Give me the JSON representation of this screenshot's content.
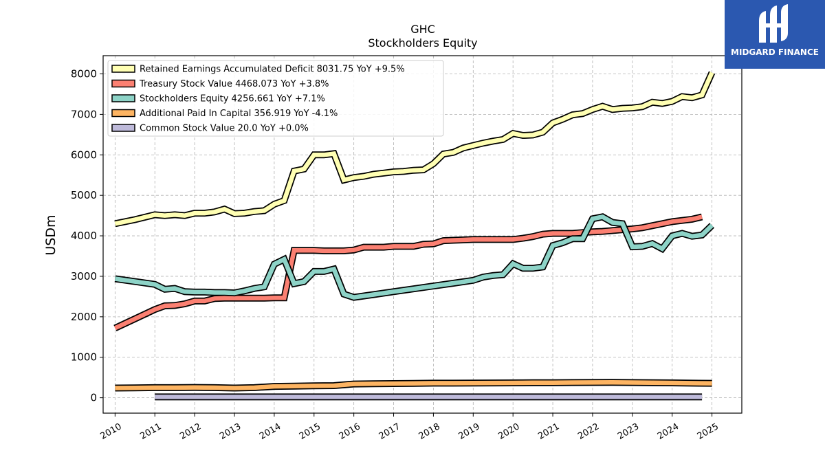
{
  "brand": {
    "name": "MIDGARD FINANCE",
    "logo_icon": "midgard-logo-icon",
    "color": "#2b58b0"
  },
  "chart_data": {
    "type": "line",
    "title": "GHC",
    "subtitle": "Stockholders  Equity",
    "ylabel": "USDm",
    "xlabel": "",
    "xlim": [
      2009.7,
      2025.75
    ],
    "ylim": [
      -380,
      8450
    ],
    "yticks": [
      0,
      1000,
      2000,
      3000,
      4000,
      5000,
      6000,
      7000,
      8000
    ],
    "xticks": [
      "2010",
      "2011",
      "2012",
      "2013",
      "2014",
      "2015",
      "2016",
      "2017",
      "2018",
      "2019",
      "2020",
      "2021",
      "2022",
      "2023",
      "2024",
      "2025"
    ],
    "grid": true,
    "legend_position": "top-left",
    "series": [
      {
        "name": "Retained Earnings Accumulated Deficit",
        "legend": "Retained Earnings Accumulated Deficit  8031.75 YoY +9.5%",
        "color": "#ffffb3",
        "points": [
          [
            2010.0,
            4300
          ],
          [
            2010.5,
            4400
          ],
          [
            2011.0,
            4520
          ],
          [
            2011.25,
            4500
          ],
          [
            2011.5,
            4520
          ],
          [
            2011.75,
            4500
          ],
          [
            2012.0,
            4560
          ],
          [
            2012.25,
            4560
          ],
          [
            2012.5,
            4590
          ],
          [
            2012.75,
            4660
          ],
          [
            2013.0,
            4550
          ],
          [
            2013.25,
            4560
          ],
          [
            2013.5,
            4600
          ],
          [
            2013.75,
            4620
          ],
          [
            2014.0,
            4780
          ],
          [
            2014.25,
            4870
          ],
          [
            2014.5,
            5600
          ],
          [
            2014.75,
            5650
          ],
          [
            2015.0,
            6000
          ],
          [
            2015.25,
            6000
          ],
          [
            2015.5,
            6030
          ],
          [
            2015.75,
            5380
          ],
          [
            2016.0,
            5440
          ],
          [
            2016.25,
            5470
          ],
          [
            2016.5,
            5520
          ],
          [
            2016.75,
            5550
          ],
          [
            2017.0,
            5580
          ],
          [
            2017.25,
            5590
          ],
          [
            2017.5,
            5620
          ],
          [
            2017.75,
            5630
          ],
          [
            2018.0,
            5780
          ],
          [
            2018.25,
            6020
          ],
          [
            2018.5,
            6060
          ],
          [
            2018.75,
            6170
          ],
          [
            2019.0,
            6230
          ],
          [
            2019.25,
            6290
          ],
          [
            2019.5,
            6340
          ],
          [
            2019.75,
            6380
          ],
          [
            2020.0,
            6530
          ],
          [
            2020.25,
            6480
          ],
          [
            2020.5,
            6490
          ],
          [
            2020.75,
            6560
          ],
          [
            2021.0,
            6790
          ],
          [
            2021.25,
            6880
          ],
          [
            2021.5,
            6990
          ],
          [
            2021.75,
            7020
          ],
          [
            2022.0,
            7120
          ],
          [
            2022.25,
            7200
          ],
          [
            2022.5,
            7120
          ],
          [
            2022.75,
            7150
          ],
          [
            2023.0,
            7160
          ],
          [
            2023.25,
            7190
          ],
          [
            2023.5,
            7300
          ],
          [
            2023.75,
            7270
          ],
          [
            2024.0,
            7320
          ],
          [
            2024.25,
            7440
          ],
          [
            2024.5,
            7410
          ],
          [
            2024.75,
            7480
          ],
          [
            2025.0,
            8031.75
          ]
        ]
      },
      {
        "name": "Treasury Stock Value",
        "legend": "Treasury Stock Value  4468.073 YoY +3.8%",
        "color": "#fb8072",
        "points": [
          [
            2010.0,
            1720
          ],
          [
            2010.5,
            1950
          ],
          [
            2011.0,
            2180
          ],
          [
            2011.25,
            2270
          ],
          [
            2011.5,
            2280
          ],
          [
            2011.75,
            2320
          ],
          [
            2012.0,
            2390
          ],
          [
            2012.25,
            2390
          ],
          [
            2012.5,
            2450
          ],
          [
            2012.75,
            2460
          ],
          [
            2013.0,
            2460
          ],
          [
            2013.25,
            2460
          ],
          [
            2013.5,
            2460
          ],
          [
            2013.75,
            2460
          ],
          [
            2014.0,
            2470
          ],
          [
            2014.25,
            2470
          ],
          [
            2014.5,
            3640
          ],
          [
            2014.75,
            3640
          ],
          [
            2015.0,
            3640
          ],
          [
            2015.25,
            3630
          ],
          [
            2015.5,
            3630
          ],
          [
            2015.75,
            3630
          ],
          [
            2016.0,
            3650
          ],
          [
            2016.25,
            3720
          ],
          [
            2016.5,
            3720
          ],
          [
            2016.75,
            3720
          ],
          [
            2017.0,
            3740
          ],
          [
            2017.25,
            3740
          ],
          [
            2017.5,
            3740
          ],
          [
            2017.75,
            3790
          ],
          [
            2018.0,
            3800
          ],
          [
            2018.25,
            3880
          ],
          [
            2018.5,
            3890
          ],
          [
            2018.75,
            3900
          ],
          [
            2019.0,
            3910
          ],
          [
            2019.25,
            3910
          ],
          [
            2019.5,
            3910
          ],
          [
            2019.75,
            3910
          ],
          [
            2020.0,
            3910
          ],
          [
            2020.25,
            3940
          ],
          [
            2020.5,
            3980
          ],
          [
            2020.75,
            4040
          ],
          [
            2021.0,
            4060
          ],
          [
            2021.25,
            4060
          ],
          [
            2021.5,
            4060
          ],
          [
            2021.75,
            4080
          ],
          [
            2022.0,
            4100
          ],
          [
            2022.25,
            4110
          ],
          [
            2022.5,
            4130
          ],
          [
            2022.75,
            4150
          ],
          [
            2023.0,
            4170
          ],
          [
            2023.25,
            4200
          ],
          [
            2023.5,
            4250
          ],
          [
            2023.75,
            4300
          ],
          [
            2024.0,
            4350
          ],
          [
            2024.25,
            4380
          ],
          [
            2024.5,
            4410
          ],
          [
            2024.75,
            4468.073
          ]
        ]
      },
      {
        "name": "Stockholders Equity",
        "legend": "Stockholders Equity  4256.661 YoY +7.1%",
        "color": "#8dd3c7",
        "points": [
          [
            2010.0,
            2940
          ],
          [
            2010.5,
            2870
          ],
          [
            2011.0,
            2800
          ],
          [
            2011.25,
            2680
          ],
          [
            2011.5,
            2700
          ],
          [
            2011.75,
            2620
          ],
          [
            2012.0,
            2610
          ],
          [
            2012.25,
            2610
          ],
          [
            2012.5,
            2600
          ],
          [
            2012.75,
            2600
          ],
          [
            2013.0,
            2590
          ],
          [
            2013.25,
            2640
          ],
          [
            2013.5,
            2700
          ],
          [
            2013.75,
            2740
          ],
          [
            2014.0,
            3300
          ],
          [
            2014.25,
            3420
          ],
          [
            2014.5,
            2820
          ],
          [
            2014.75,
            2870
          ],
          [
            2015.0,
            3120
          ],
          [
            2015.25,
            3120
          ],
          [
            2015.5,
            3180
          ],
          [
            2015.75,
            2560
          ],
          [
            2016.0,
            2480
          ],
          [
            2016.5,
            2550
          ],
          [
            2017.0,
            2620
          ],
          [
            2017.5,
            2690
          ],
          [
            2018.0,
            2760
          ],
          [
            2018.5,
            2830
          ],
          [
            2019.0,
            2900
          ],
          [
            2019.25,
            2980
          ],
          [
            2019.5,
            3020
          ],
          [
            2019.75,
            3040
          ],
          [
            2020.0,
            3310
          ],
          [
            2020.25,
            3200
          ],
          [
            2020.5,
            3200
          ],
          [
            2020.75,
            3230
          ],
          [
            2021.0,
            3760
          ],
          [
            2021.25,
            3830
          ],
          [
            2021.5,
            3930
          ],
          [
            2021.75,
            3930
          ],
          [
            2022.0,
            4420
          ],
          [
            2022.25,
            4470
          ],
          [
            2022.5,
            4330
          ],
          [
            2022.75,
            4300
          ],
          [
            2023.0,
            3730
          ],
          [
            2023.25,
            3740
          ],
          [
            2023.5,
            3810
          ],
          [
            2023.75,
            3680
          ],
          [
            2024.0,
            4000
          ],
          [
            2024.25,
            4060
          ],
          [
            2024.5,
            3990
          ],
          [
            2024.75,
            4020
          ],
          [
            2025.0,
            4256.661
          ]
        ]
      },
      {
        "name": "Additional Paid In Capital",
        "legend": "Additional Paid In Capital  356.919 YoY -4.1%",
        "color": "#fdb462",
        "points": [
          [
            2010.0,
            240
          ],
          [
            2010.5,
            245
          ],
          [
            2011.0,
            250
          ],
          [
            2011.5,
            250
          ],
          [
            2012.0,
            255
          ],
          [
            2012.5,
            250
          ],
          [
            2013.0,
            240
          ],
          [
            2013.5,
            250
          ],
          [
            2014.0,
            280
          ],
          [
            2014.5,
            285
          ],
          [
            2015.0,
            295
          ],
          [
            2015.5,
            300
          ],
          [
            2016.0,
            340
          ],
          [
            2016.5,
            345
          ],
          [
            2017.0,
            350
          ],
          [
            2017.5,
            355
          ],
          [
            2018.0,
            360
          ],
          [
            2018.5,
            360
          ],
          [
            2019.0,
            362
          ],
          [
            2019.5,
            365
          ],
          [
            2020.0,
            368
          ],
          [
            2020.5,
            370
          ],
          [
            2021.0,
            372
          ],
          [
            2021.5,
            375
          ],
          [
            2022.0,
            378
          ],
          [
            2022.5,
            380
          ],
          [
            2023.0,
            375
          ],
          [
            2023.5,
            372
          ],
          [
            2024.0,
            368
          ],
          [
            2024.5,
            360
          ],
          [
            2025.0,
            356.919
          ]
        ]
      },
      {
        "name": "Common Stock Value",
        "legend": "Common Stock Value  20.0 YoY +0.0%",
        "color": "#bebada",
        "points": [
          [
            2011.0,
            20
          ],
          [
            2012.0,
            20
          ],
          [
            2013.0,
            20
          ],
          [
            2014.0,
            20
          ],
          [
            2015.0,
            20
          ],
          [
            2016.0,
            20
          ],
          [
            2017.0,
            20
          ],
          [
            2018.0,
            20
          ],
          [
            2019.0,
            20
          ],
          [
            2020.0,
            20
          ],
          [
            2021.0,
            20
          ],
          [
            2022.0,
            20
          ],
          [
            2023.0,
            20
          ],
          [
            2024.0,
            20
          ],
          [
            2024.75,
            20.0
          ]
        ]
      }
    ]
  }
}
